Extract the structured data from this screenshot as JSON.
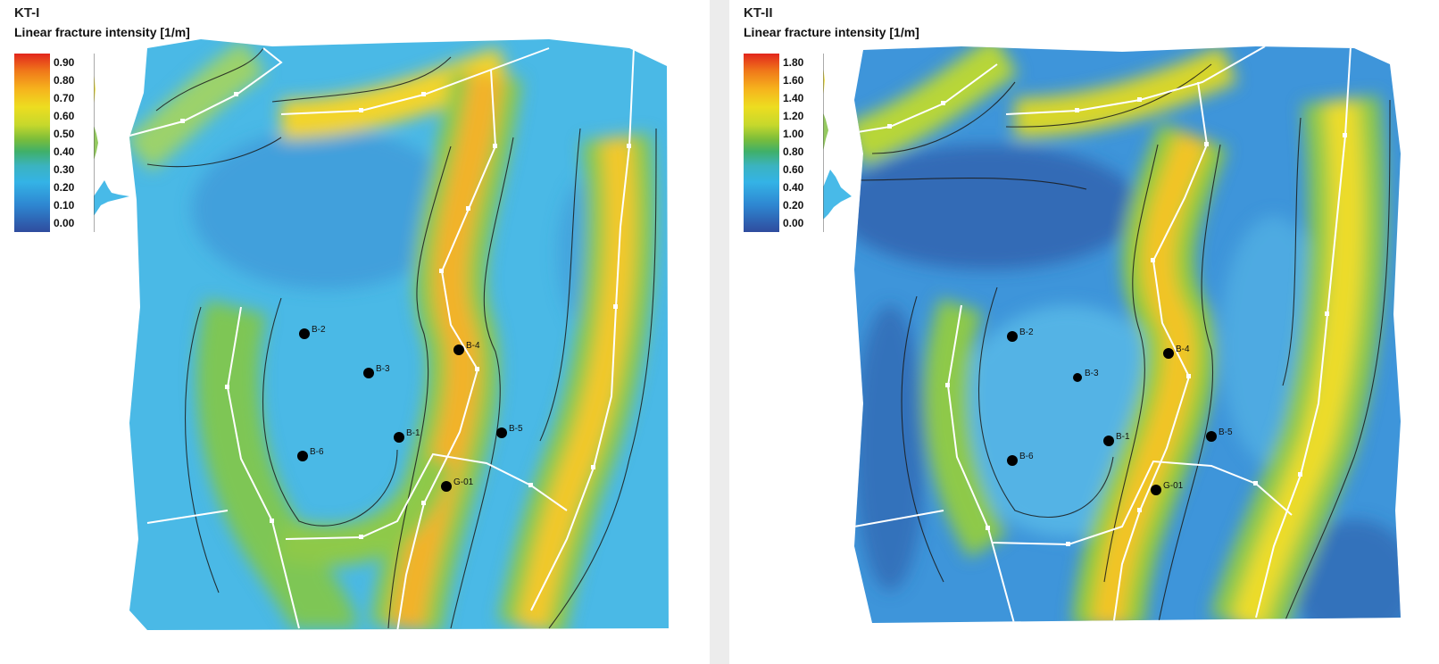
{
  "panels": [
    {
      "title": "KT-I",
      "subtitle": "Linear fracture intensity [1/m]",
      "legend_ticks": [
        "0.90",
        "0.80",
        "0.70",
        "0.60",
        "0.50",
        "0.40",
        "0.30",
        "0.20",
        "0.10",
        "0.00"
      ],
      "wells": [
        "B-2",
        "B-3",
        "B-4",
        "B-1",
        "B-5",
        "B-6",
        "G-01"
      ]
    },
    {
      "title": "KT-II",
      "subtitle": "Linear fracture intensity [1/m]",
      "legend_ticks": [
        "1.80",
        "1.60",
        "1.40",
        "1.20",
        "1.00",
        "0.80",
        "0.60",
        "0.40",
        "0.20",
        "0.00"
      ],
      "wells": [
        "B-2",
        "B-3",
        "B-4",
        "B-1",
        "B-5",
        "B-6",
        "G-01"
      ]
    }
  ],
  "colors": {
    "low": "#2f4c9e",
    "mid_low": "#34b3e6",
    "mid": "#7bbd3a",
    "high": "#eddd20",
    "max": "#e2261c",
    "well_marker": "#000000",
    "fault_line": "#ffffff"
  }
}
